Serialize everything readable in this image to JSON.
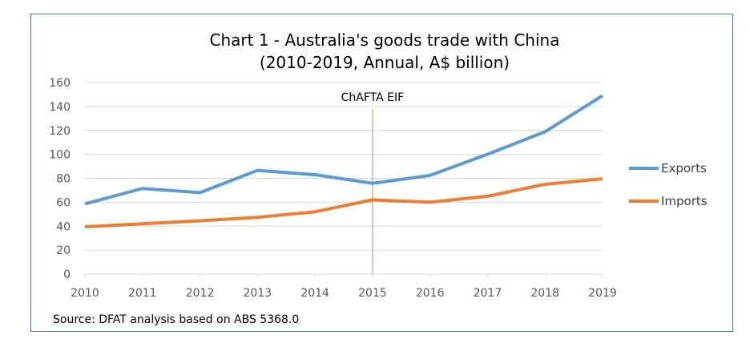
{
  "chart_data": {
    "type": "line",
    "title": "Chart 1 - Australia's goods trade with China",
    "subtitle": "(2010-2019, Annual, A$ billion)",
    "x": [
      "2010",
      "2011",
      "2012",
      "2013",
      "2014",
      "2015",
      "2016",
      "2017",
      "2018",
      "2019"
    ],
    "ylim": [
      0,
      160
    ],
    "yticks": [
      0,
      20,
      40,
      60,
      80,
      100,
      120,
      140,
      160
    ],
    "grid": true,
    "legend_position": "right",
    "series": [
      {
        "name": "Exports",
        "color": "#5b9bd5",
        "values": [
          58.6,
          71.5,
          68.0,
          86.6,
          83.0,
          75.8,
          82.4,
          100.1,
          118.9,
          149.1
        ]
      },
      {
        "name": "Imports",
        "color": "#ed7d31",
        "values": [
          39.5,
          42.0,
          44.5,
          47.4,
          52.0,
          62.0,
          60.0,
          65.0,
          75.0,
          79.6
        ]
      }
    ],
    "annotations": [
      {
        "text": "ChAFTA EIF",
        "x": "2015",
        "color": "#70ad47"
      }
    ],
    "source": "Source: DFAT analysis based on ABS 5368.0"
  }
}
